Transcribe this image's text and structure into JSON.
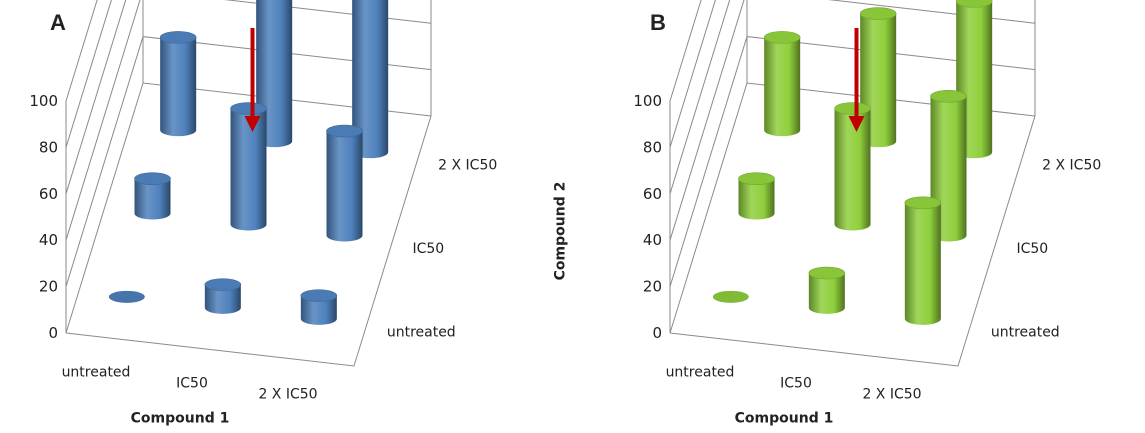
{
  "chart_data": [
    {
      "type": "bar",
      "panel_label": "A",
      "x_categories": [
        "untreated",
        "IC50",
        "2 X IC50"
      ],
      "z_categories": [
        "untreated",
        "IC50",
        "2 X IC50"
      ],
      "series": [
        {
          "values": [
            0,
            10,
            10
          ]
        },
        {
          "values": [
            15,
            50,
            45
          ]
        },
        {
          "values": [
            40,
            65,
            90
          ]
        }
      ],
      "xlabel": "Compound 1",
      "zlabel": "Compound 2",
      "yticks": [
        "0",
        "20",
        "40",
        "60",
        "80",
        "100"
      ],
      "ylim": [
        0,
        100
      ],
      "color": "#4f81bd",
      "arrow_color": "#c00000"
    },
    {
      "type": "bar",
      "panel_label": "B",
      "x_categories": [
        "untreated",
        "IC50",
        "2 X IC50"
      ],
      "z_categories": [
        "untreated",
        "IC50",
        "2 X IC50"
      ],
      "series": [
        {
          "values": [
            0,
            15,
            50
          ]
        },
        {
          "values": [
            15,
            50,
            60
          ]
        },
        {
          "values": [
            40,
            55,
            65
          ]
        }
      ],
      "xlabel": "Compound 1",
      "zlabel": "Compound 2",
      "yticks": [
        "0",
        "20",
        "40",
        "60",
        "80",
        "100"
      ],
      "ylim": [
        0,
        100
      ],
      "color": "#8fcf3c",
      "arrow_color": "#c00000"
    }
  ]
}
